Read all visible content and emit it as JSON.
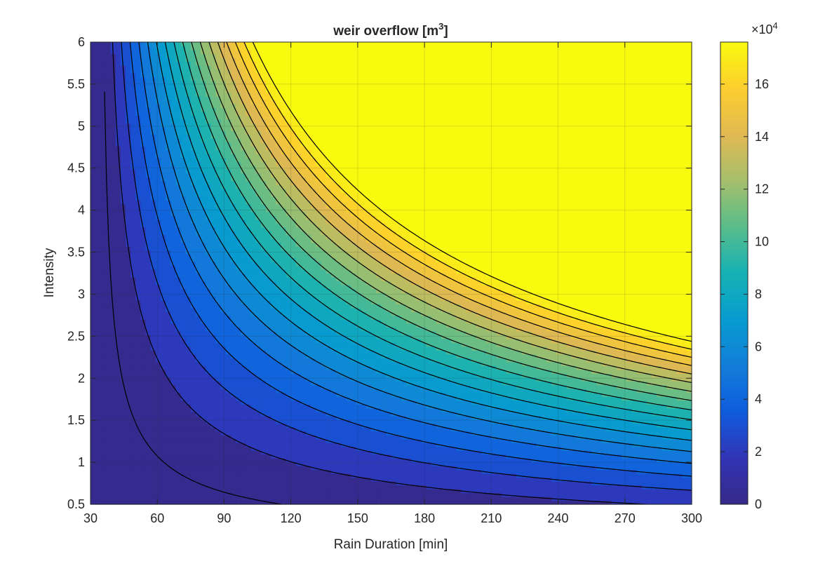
{
  "chart_data": {
    "type": "contour",
    "title": "weir overflow [m",
    "title_superscript": "3",
    "title_suffix": "]",
    "xlabel": "Rain Duration [min]",
    "ylabel": "Intensity",
    "x_ticks": [
      30,
      60,
      90,
      120,
      150,
      180,
      210,
      240,
      270,
      300
    ],
    "y_ticks": [
      0.5,
      1,
      1.5,
      2,
      2.5,
      3,
      3.5,
      4,
      4.5,
      5,
      5.5,
      6
    ],
    "x_tick_labels": [
      "30",
      "60",
      "90",
      "120",
      "150",
      "180",
      "210",
      "240",
      "270",
      "300"
    ],
    "y_tick_labels": [
      "0.5",
      "1",
      "1.5",
      "2",
      "2.5",
      "3",
      "3.5",
      "4",
      "4.5",
      "5",
      "5.5",
      "6"
    ],
    "xlim": [
      30,
      300
    ],
    "ylim": [
      0.5,
      6
    ],
    "grid": true,
    "colormap": "parula",
    "colorbar": {
      "range": [
        0,
        176000
      ],
      "exponent_label": "×10",
      "exponent_power": "4",
      "ticks": [
        0,
        2,
        4,
        6,
        8,
        10,
        12,
        14,
        16
      ],
      "tick_labels": [
        "0",
        "2",
        "4",
        "6",
        "8",
        "10",
        "12",
        "14",
        "16"
      ]
    },
    "model": "overflow = 2.16 * duration * intensity^1.5 * (1 - 34/duration) * 0.08 * 1000 m^3 (approx.)",
    "contour_step": 10000,
    "contour_levels": [
      5000,
      15000,
      25000,
      35000,
      45000,
      55000,
      65000,
      75000,
      85000,
      95000,
      105000,
      115000,
      125000,
      135000,
      145000,
      155000,
      165000,
      175000
    ]
  }
}
